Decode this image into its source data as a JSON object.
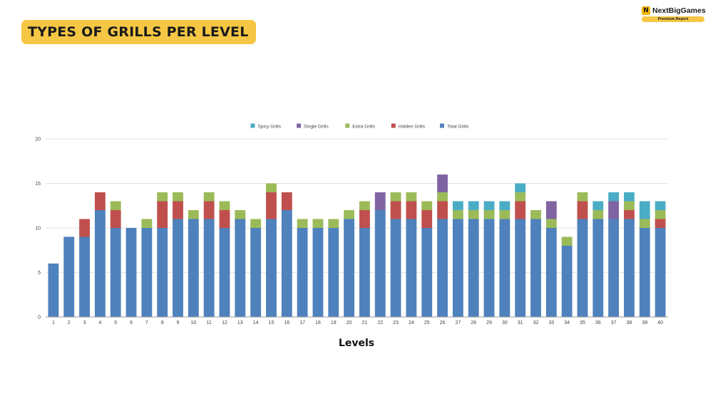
{
  "header": {
    "title": "TYPES OF GRILLS PER LEVEL"
  },
  "brand": {
    "logo_letter": "N",
    "name": "NextBigGames",
    "badge": "Premium Report"
  },
  "chart_data": {
    "type": "bar",
    "stacked": true,
    "xlabel": "Levels",
    "ylabel": "",
    "ylim": [
      0,
      20
    ],
    "yticks": [
      0,
      5,
      10,
      15,
      20
    ],
    "grid": true,
    "legend_position": "top-center",
    "categories": [
      "1",
      "2",
      "3",
      "4",
      "5",
      "6",
      "7",
      "8",
      "9",
      "10",
      "11",
      "12",
      "13",
      "14",
      "15",
      "16",
      "17",
      "18",
      "19",
      "20",
      "21",
      "22",
      "23",
      "24",
      "25",
      "26",
      "27",
      "28",
      "29",
      "30",
      "31",
      "32",
      "33",
      "34",
      "35",
      "36",
      "37",
      "38",
      "39",
      "40"
    ],
    "series": [
      {
        "name": "Total Grills",
        "color": "#4f81bd",
        "values": [
          6,
          9,
          9,
          12,
          10,
          10,
          10,
          10,
          11,
          11,
          11,
          10,
          11,
          10,
          11,
          12,
          10,
          10,
          10,
          11,
          10,
          12,
          11,
          11,
          10,
          11,
          11,
          11,
          11,
          11,
          11,
          11,
          10,
          8,
          11,
          11,
          11,
          11,
          10,
          10
        ]
      },
      {
        "name": "Hidden Grills",
        "color": "#c0504d",
        "values": [
          0,
          0,
          2,
          2,
          2,
          0,
          0,
          3,
          2,
          0,
          2,
          2,
          0,
          0,
          3,
          2,
          0,
          0,
          0,
          0,
          2,
          0,
          2,
          2,
          2,
          2,
          0,
          0,
          0,
          0,
          2,
          0,
          0,
          0,
          2,
          0,
          0,
          1,
          0,
          1
        ]
      },
      {
        "name": "Extra Grills",
        "color": "#9bbb59",
        "values": [
          0,
          0,
          0,
          0,
          1,
          0,
          1,
          1,
          1,
          1,
          1,
          1,
          1,
          1,
          1,
          0,
          1,
          1,
          1,
          1,
          1,
          0,
          1,
          1,
          1,
          1,
          1,
          1,
          1,
          1,
          1,
          1,
          1,
          1,
          1,
          1,
          0,
          1,
          1,
          1
        ]
      },
      {
        "name": "Single Grills",
        "color": "#8064a2",
        "values": [
          0,
          0,
          0,
          0,
          0,
          0,
          0,
          0,
          0,
          0,
          0,
          0,
          0,
          0,
          0,
          0,
          0,
          0,
          0,
          0,
          0,
          2,
          0,
          0,
          0,
          2,
          0,
          0,
          0,
          0,
          0,
          0,
          2,
          0,
          0,
          0,
          2,
          0,
          0,
          0
        ]
      },
      {
        "name": "Spicy Grills",
        "color": "#4bacc6",
        "values": [
          0,
          0,
          0,
          0,
          0,
          0,
          0,
          0,
          0,
          0,
          0,
          0,
          0,
          0,
          0,
          0,
          0,
          0,
          0,
          0,
          0,
          0,
          0,
          0,
          0,
          0,
          1,
          1,
          1,
          1,
          1,
          0,
          0,
          0,
          0,
          1,
          1,
          1,
          2,
          1
        ]
      }
    ],
    "legend_order": [
      "Spicy Grills",
      "Single Grills",
      "Extra Grills",
      "Hidden Grills",
      "Total Grills"
    ]
  }
}
